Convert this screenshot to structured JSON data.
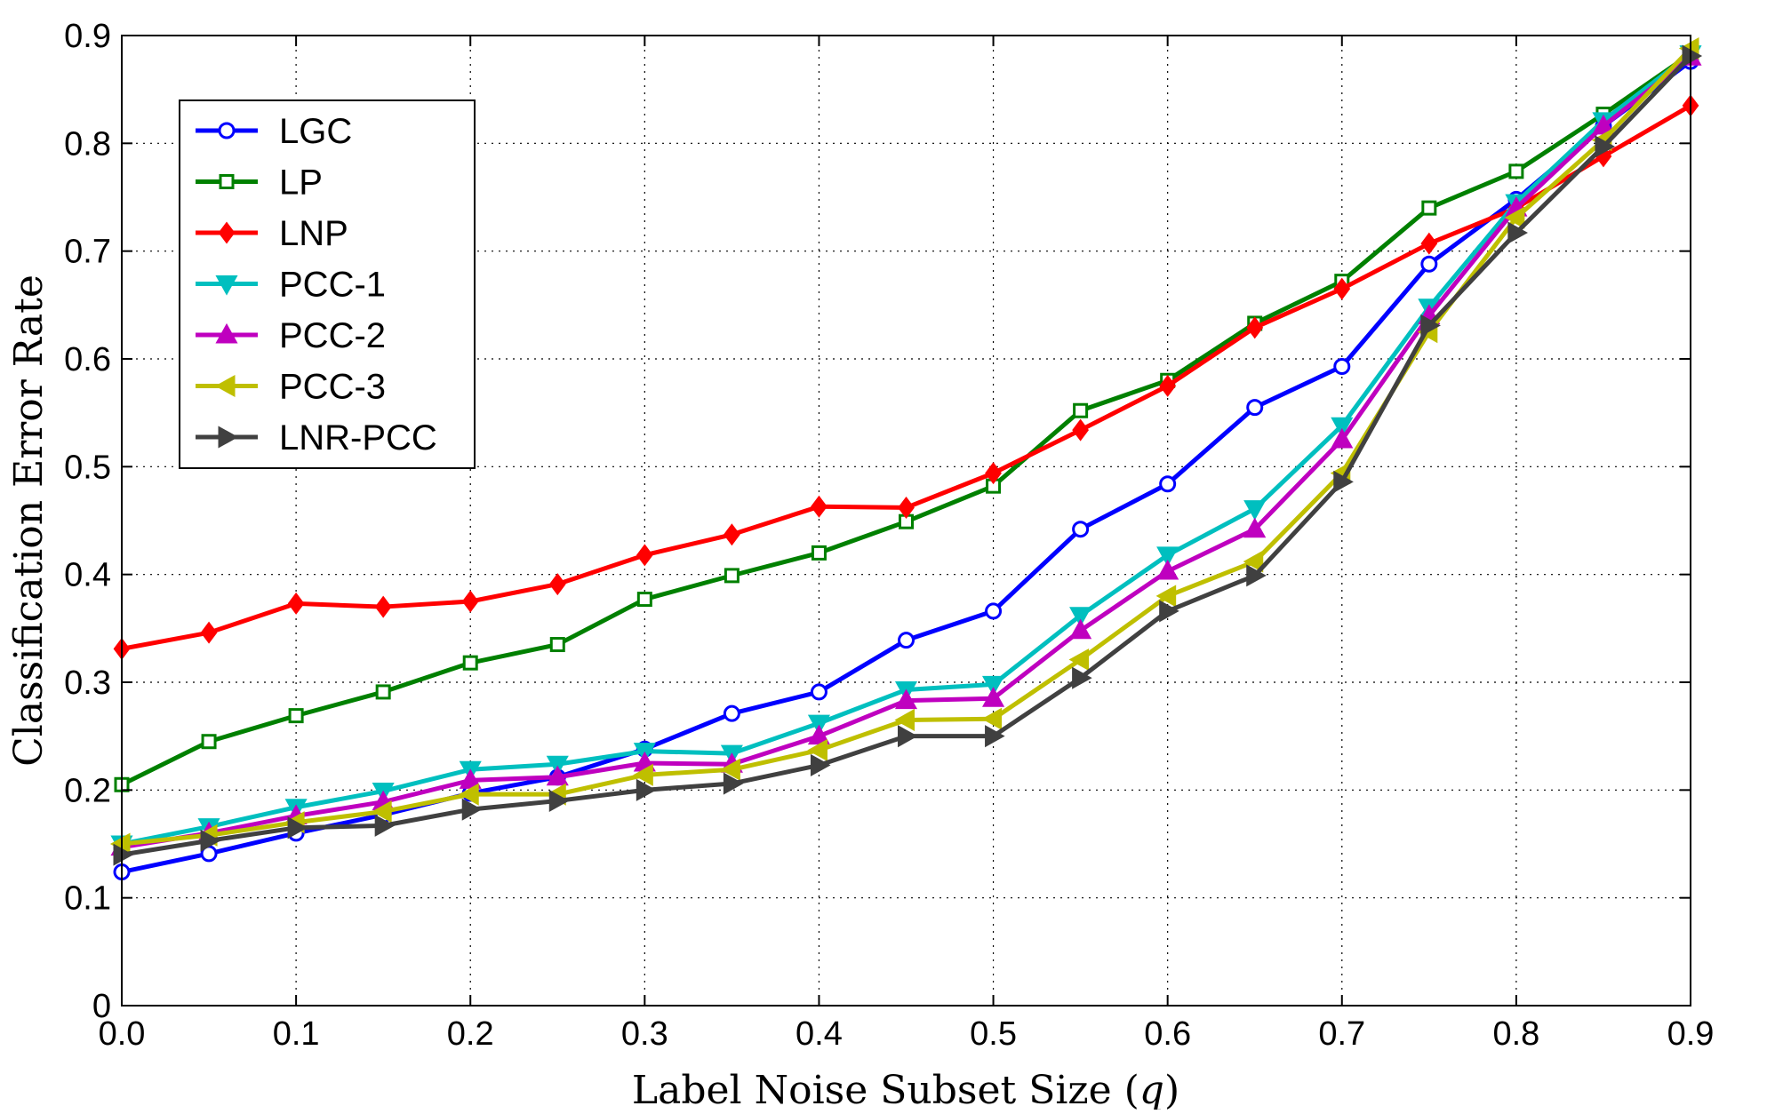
{
  "chart_data": {
    "type": "line",
    "title": "",
    "xlabel": "Label Noise Subset Size (q)",
    "ylabel": "Classification Error Rate",
    "xlim": [
      0.0,
      0.9
    ],
    "ylim": [
      0,
      0.9
    ],
    "xticks": [
      "0.0",
      "0.1",
      "0.2",
      "0.3",
      "0.4",
      "0.5",
      "0.6",
      "0.7",
      "0.8",
      "0.9"
    ],
    "yticks": [
      "0",
      "0.1",
      "0.2",
      "0.3",
      "0.4",
      "0.5",
      "0.6",
      "0.7",
      "0.8",
      "0.9"
    ],
    "grid": true,
    "legend_position": "top-left",
    "x": [
      0.0,
      0.05,
      0.1,
      0.15,
      0.2,
      0.25,
      0.3,
      0.35,
      0.4,
      0.45,
      0.5,
      0.55,
      0.6,
      0.65,
      0.7,
      0.75,
      0.8,
      0.85,
      0.9
    ],
    "series": [
      {
        "name": "LGC",
        "color": "#0000ff",
        "marker": "circle",
        "values": [
          0.124,
          0.141,
          0.16,
          0.177,
          0.197,
          0.212,
          0.238,
          0.271,
          0.291,
          0.339,
          0.366,
          0.442,
          0.484,
          0.555,
          0.593,
          0.688,
          0.748,
          0.816,
          0.876
        ]
      },
      {
        "name": "LP",
        "color": "#008000",
        "marker": "square",
        "values": [
          0.205,
          0.245,
          0.269,
          0.291,
          0.318,
          0.335,
          0.377,
          0.399,
          0.42,
          0.449,
          0.482,
          0.552,
          0.58,
          0.633,
          0.672,
          0.74,
          0.774,
          0.827,
          0.883
        ]
      },
      {
        "name": "LNP",
        "color": "#ff0000",
        "marker": "diamond",
        "values": [
          0.331,
          0.346,
          0.373,
          0.37,
          0.375,
          0.391,
          0.418,
          0.437,
          0.463,
          0.462,
          0.494,
          0.534,
          0.575,
          0.629,
          0.665,
          0.707,
          0.74,
          0.788,
          0.835
        ]
      },
      {
        "name": "PCC-1",
        "color": "#00bfbf",
        "marker": "triangle-down",
        "values": [
          0.15,
          0.166,
          0.184,
          0.199,
          0.219,
          0.224,
          0.236,
          0.234,
          0.262,
          0.293,
          0.298,
          0.362,
          0.418,
          0.461,
          0.538,
          0.648,
          0.745,
          0.821,
          0.883
        ]
      },
      {
        "name": "PCC-2",
        "color": "#bf00bf",
        "marker": "triangle-up",
        "values": [
          0.147,
          0.16,
          0.176,
          0.189,
          0.209,
          0.212,
          0.225,
          0.224,
          0.25,
          0.283,
          0.285,
          0.348,
          0.403,
          0.442,
          0.525,
          0.64,
          0.74,
          0.816,
          0.88
        ]
      },
      {
        "name": "PCC-3",
        "color": "#bfbf00",
        "marker": "triangle-left",
        "values": [
          0.15,
          0.158,
          0.17,
          0.18,
          0.196,
          0.196,
          0.214,
          0.219,
          0.237,
          0.265,
          0.266,
          0.321,
          0.38,
          0.412,
          0.494,
          0.625,
          0.731,
          0.803,
          0.888
        ]
      },
      {
        "name": "LNR-PCC",
        "color": "#404040",
        "marker": "triangle-right",
        "values": [
          0.14,
          0.153,
          0.165,
          0.167,
          0.182,
          0.19,
          0.2,
          0.206,
          0.223,
          0.25,
          0.25,
          0.304,
          0.366,
          0.399,
          0.486,
          0.631,
          0.717,
          0.797,
          0.881
        ]
      }
    ]
  }
}
